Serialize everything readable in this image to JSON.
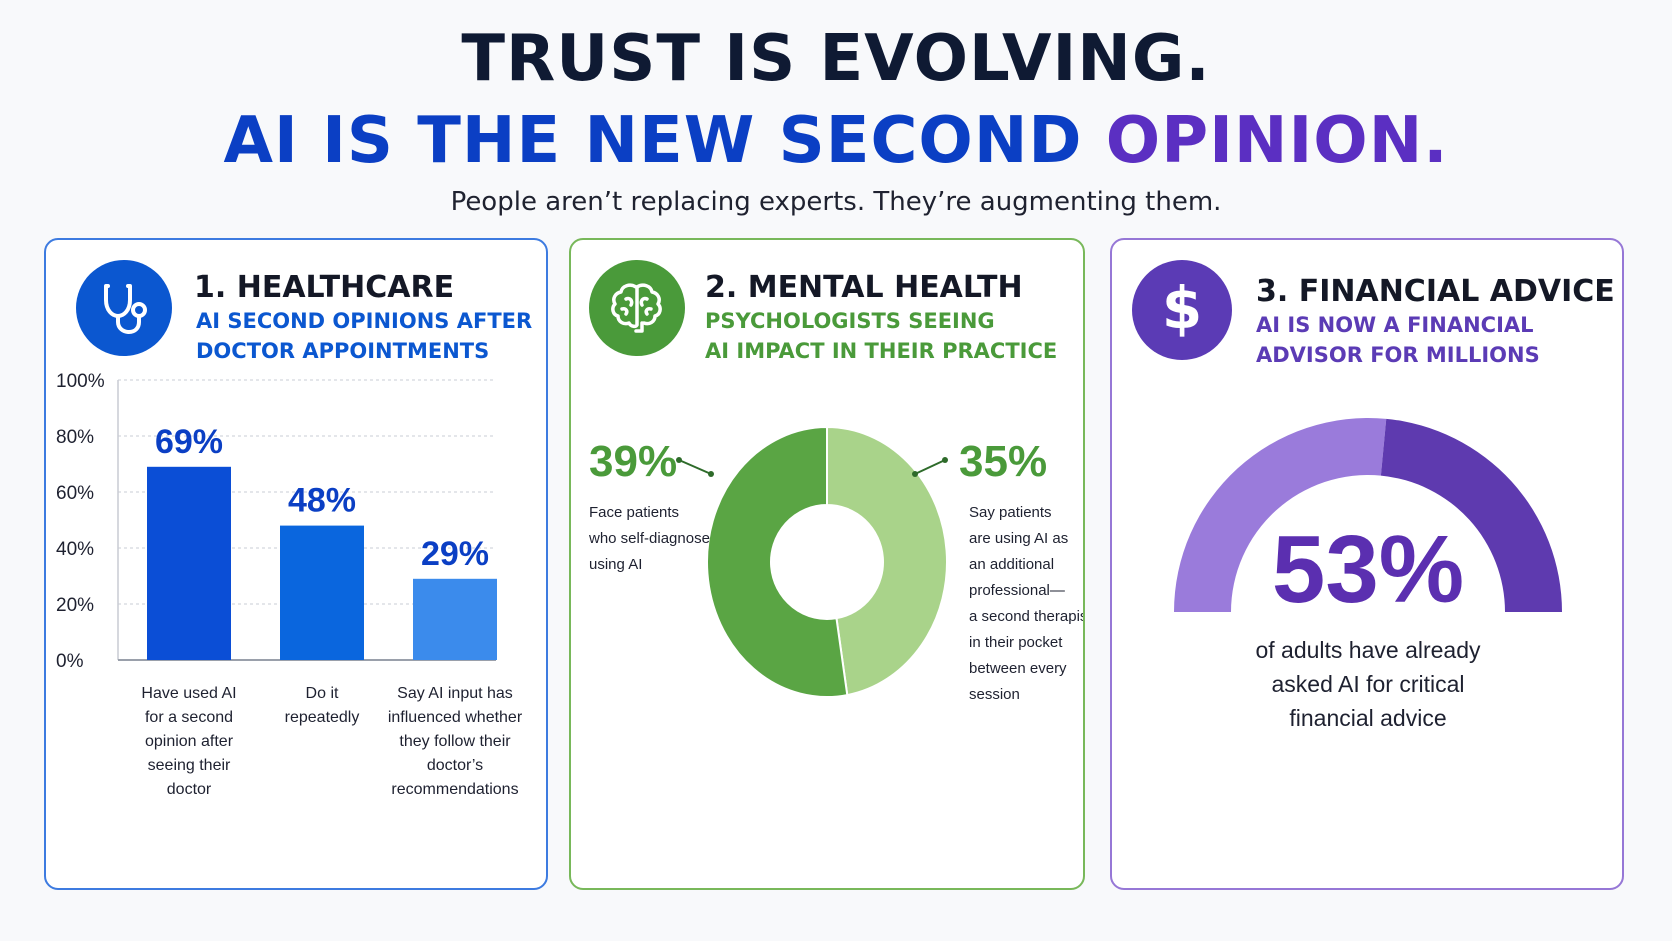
{
  "header": {
    "title_line1": "TRUST IS EVOLVING.",
    "title_line2_a": "AI IS THE NEW SECOND ",
    "title_line2_b": "OPINION.",
    "subtitle": "People aren’t replacing experts. They’re augmenting them."
  },
  "colors": {
    "healthcare": "#0b57d0",
    "mental_health": "#4a9a3a",
    "financial": "#5b3bb5",
    "bar_series": [
      "#0b4ed6",
      "#0a66de",
      "#3b8bec"
    ],
    "donut": [
      "#5aa544",
      "#a9d38a"
    ],
    "gauge": [
      "#9a7bdb",
      "#5e3aaf"
    ]
  },
  "panels": {
    "healthcare": {
      "icon": "stethoscope-icon",
      "title": "1. HEALTHCARE",
      "subtitle_line1": "AI SECOND OPINIONS AFTER",
      "subtitle_line2": "DOCTOR APPOINTMENTS"
    },
    "mental_health": {
      "icon": "brain-icon",
      "title": "2. MENTAL HEALTH",
      "subtitle_line1": "PSYCHOLOGISTS SEEING",
      "subtitle_line2": "AI IMPACT IN THEIR PRACTICE"
    },
    "financial": {
      "icon": "dollar-icon",
      "title": "3. FINANCIAL ADVICE",
      "subtitle_line1": "AI IS NOW A FINANCIAL",
      "subtitle_line2": "ADVISOR FOR MILLIONS"
    }
  },
  "chart_data": [
    {
      "type": "bar",
      "categories": [
        "Have used AI for a second opinion after seeing their doctor",
        "Do it repeatedly",
        "Say AI input has influenced whether they follow their doctor’s recommendations"
      ],
      "category_lines": [
        [
          "Have used AI",
          "for a second",
          "opinion after",
          "seeing their",
          "doctor"
        ],
        [
          "Do it",
          "repeatedly"
        ],
        [
          "Say AI input has",
          "influenced whether",
          "they follow their",
          "doctor’s",
          "recommendations"
        ]
      ],
      "values": [
        69,
        48,
        29
      ],
      "value_labels": [
        "69%",
        "48%",
        "29%"
      ],
      "ylim": [
        0,
        100
      ],
      "yticks": [
        "0%",
        "20%",
        "40%",
        "60%",
        "80%",
        "100%"
      ],
      "grid": true
    },
    {
      "type": "pie",
      "donut": true,
      "slices": [
        {
          "value": 39,
          "label": "39%",
          "description_lines": [
            "Face patients",
            "who self-diagnose",
            "using AI"
          ]
        },
        {
          "value": 35,
          "label": "35%",
          "description_lines": [
            "Say patients",
            "are using AI as",
            "an additional",
            "professional—",
            "a second therapist",
            "in their pocket",
            "between every",
            "session"
          ]
        }
      ]
    },
    {
      "type": "gauge",
      "value": 53,
      "value_label": "53%",
      "caption_lines": [
        "of adults have already",
        "asked AI for critical",
        "financial advice"
      ]
    }
  ]
}
